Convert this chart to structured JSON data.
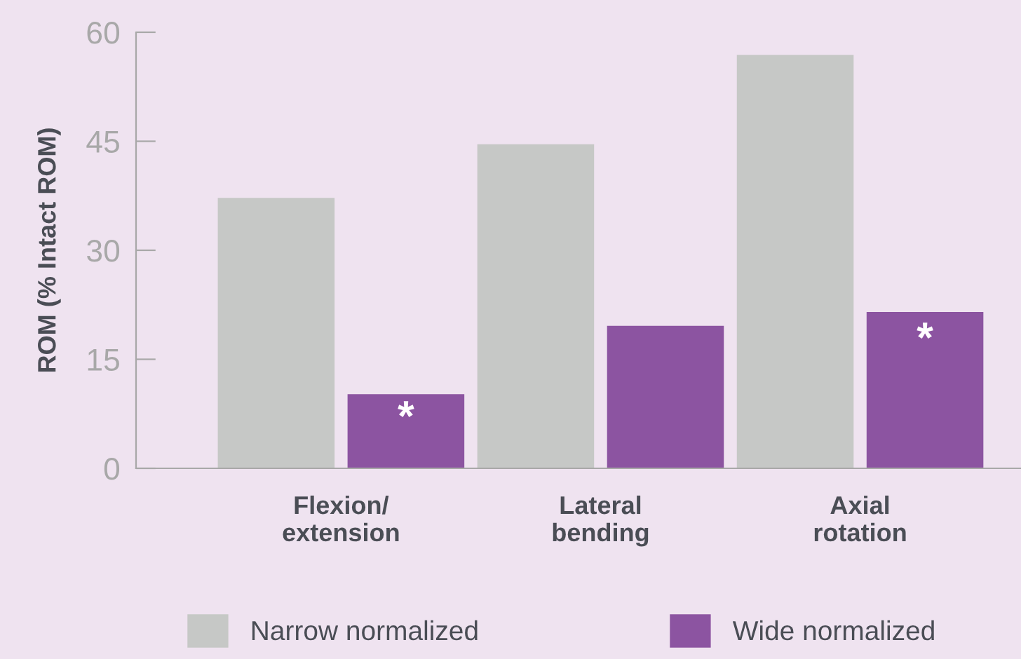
{
  "chart_data": {
    "type": "bar",
    "ylabel": "ROM (% Intact ROM)",
    "categories": [
      "Flexion/\nextension",
      "Lateral\nbending",
      "Axial\nrotation"
    ],
    "series": [
      {
        "name": "Narrow normalized",
        "color": "#c6c8c6",
        "values": [
          37.2,
          44.6,
          56.9
        ]
      },
      {
        "name": "Wide normalized",
        "color": "#8c54a1",
        "values": [
          10.2,
          19.6,
          21.5
        ]
      }
    ],
    "annotations": [
      {
        "text": "*",
        "x": "Flexion/\nextension",
        "y": 6.7
      },
      {
        "text": "*",
        "x": "Axial\nrotation",
        "y": 17.5
      }
    ],
    "ylim": [
      0,
      60
    ],
    "yticks": [
      0,
      15,
      30,
      45,
      60
    ],
    "grid": false,
    "legend": "bottom"
  }
}
